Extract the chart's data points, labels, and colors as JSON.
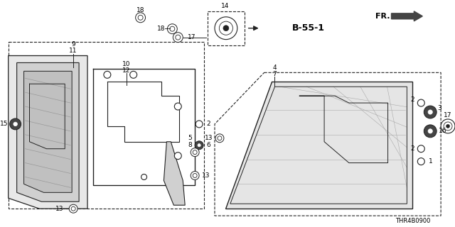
{
  "background_color": "#ffffff",
  "line_color": "#222222",
  "text_color": "#000000",
  "diagram_code": "THR4B0900",
  "fs": 6.5
}
